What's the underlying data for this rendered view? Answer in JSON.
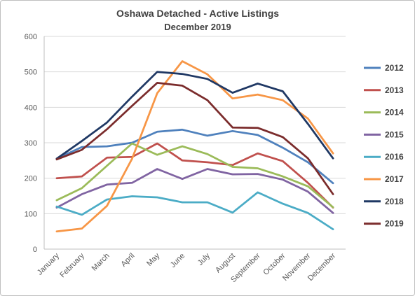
{
  "chart_data": {
    "type": "line",
    "title": "Oshawa Detached - Active Listings",
    "subtitle": "December 2019",
    "xlabel": "",
    "ylabel": "",
    "ylim": [
      0,
      600
    ],
    "yticks": [
      "0",
      "100",
      "200",
      "300",
      "400",
      "500",
      "600"
    ],
    "grid": "horizontal",
    "legend_position": "right",
    "categories": [
      "January",
      "February",
      "March",
      "April",
      "May",
      "June",
      "July",
      "August",
      "September",
      "October",
      "November",
      "December"
    ],
    "series": [
      {
        "name": "2012",
        "color": "#4f81bd",
        "values": [
          255,
          288,
          290,
          300,
          331,
          337,
          320,
          333,
          322,
          286,
          245,
          186
        ]
      },
      {
        "name": "2013",
        "color": "#c0504d",
        "values": [
          200,
          205,
          258,
          260,
          298,
          250,
          245,
          237,
          270,
          248,
          187,
          117
        ]
      },
      {
        "name": "2014",
        "color": "#9bbb59",
        "values": [
          138,
          172,
          235,
          298,
          266,
          290,
          268,
          232,
          228,
          205,
          177,
          118
        ]
      },
      {
        "name": "2015",
        "color": "#8064a2",
        "values": [
          117,
          155,
          182,
          187,
          226,
          198,
          226,
          211,
          212,
          196,
          162,
          102
        ]
      },
      {
        "name": "2016",
        "color": "#4bacc6",
        "values": [
          120,
          97,
          140,
          149,
          146,
          132,
          132,
          103,
          160,
          128,
          102,
          56
        ]
      },
      {
        "name": "2017",
        "color": "#f79646",
        "values": [
          50,
          58,
          122,
          255,
          440,
          530,
          493,
          425,
          436,
          420,
          368,
          270
        ]
      },
      {
        "name": "2018",
        "color": "#1f3864",
        "values": [
          255,
          305,
          357,
          430,
          500,
          494,
          480,
          441,
          467,
          445,
          353,
          256
        ]
      },
      {
        "name": "2019",
        "color": "#7b2c2c",
        "values": [
          253,
          280,
          338,
          404,
          469,
          461,
          420,
          343,
          342,
          316,
          256,
          155
        ]
      }
    ]
  }
}
